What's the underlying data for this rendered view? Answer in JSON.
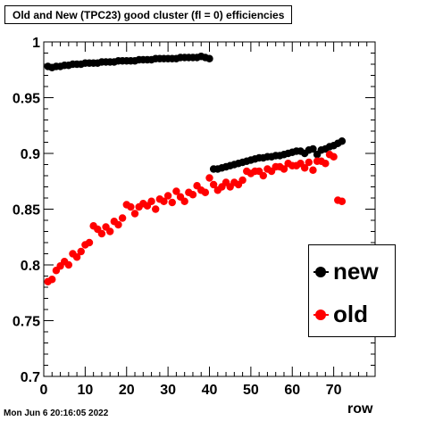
{
  "title": "Old and New (TPC23) good cluster (fl = 0) efficiencies",
  "timestamp": "Mon Jun  6 20:16:05 2022",
  "colors": {
    "new": "#000000",
    "old": "#ff0000",
    "frame": "#000000"
  },
  "chart_data": {
    "type": "scatter",
    "xlabel": "row",
    "ylabel": "",
    "xlim": [
      0,
      80
    ],
    "ylim": [
      0.7,
      1.0
    ],
    "x_ticks": [
      0,
      10,
      20,
      30,
      40,
      50,
      60,
      70
    ],
    "y_ticks": [
      0.7,
      0.75,
      0.8,
      0.85,
      0.9,
      0.95,
      1
    ],
    "y_tick_labels": [
      "0.7",
      "0.75",
      "0.8",
      "0.85",
      "0.9",
      "0.95",
      "1"
    ],
    "legend_position": "bottom-right",
    "series": [
      {
        "name": "new",
        "x": [
          1,
          2,
          3,
          4,
          5,
          6,
          7,
          8,
          9,
          10,
          11,
          12,
          13,
          14,
          15,
          16,
          17,
          18,
          19,
          20,
          21,
          22,
          23,
          24,
          25,
          26,
          27,
          28,
          29,
          30,
          31,
          32,
          33,
          34,
          35,
          36,
          37,
          38,
          39,
          40,
          41,
          42,
          43,
          44,
          45,
          46,
          47,
          48,
          49,
          50,
          51,
          52,
          53,
          54,
          55,
          56,
          57,
          58,
          59,
          60,
          61,
          62,
          63,
          64,
          65,
          66,
          67,
          68,
          69,
          70,
          71,
          72
        ],
        "y": [
          0.978,
          0.977,
          0.978,
          0.978,
          0.979,
          0.979,
          0.98,
          0.98,
          0.98,
          0.981,
          0.981,
          0.981,
          0.981,
          0.982,
          0.982,
          0.982,
          0.982,
          0.983,
          0.983,
          0.983,
          0.983,
          0.983,
          0.984,
          0.984,
          0.984,
          0.984,
          0.985,
          0.985,
          0.985,
          0.985,
          0.985,
          0.985,
          0.986,
          0.986,
          0.986,
          0.986,
          0.986,
          0.987,
          0.986,
          0.985,
          0.886,
          0.886,
          0.887,
          0.888,
          0.889,
          0.89,
          0.891,
          0.892,
          0.893,
          0.894,
          0.895,
          0.896,
          0.896,
          0.897,
          0.897,
          0.898,
          0.898,
          0.899,
          0.9,
          0.901,
          0.902,
          0.902,
          0.9,
          0.903,
          0.904,
          0.899,
          0.903,
          0.904,
          0.906,
          0.907,
          0.909,
          0.911
        ]
      },
      {
        "name": "old",
        "x": [
          1,
          2,
          3,
          4,
          5,
          6,
          7,
          8,
          9,
          10,
          11,
          12,
          13,
          14,
          15,
          16,
          17,
          18,
          19,
          20,
          21,
          22,
          23,
          24,
          25,
          26,
          27,
          28,
          29,
          30,
          31,
          32,
          33,
          34,
          35,
          36,
          37,
          38,
          39,
          40,
          41,
          42,
          43,
          44,
          45,
          46,
          47,
          48,
          49,
          50,
          51,
          52,
          53,
          54,
          55,
          56,
          57,
          58,
          59,
          60,
          61,
          62,
          63,
          64,
          65,
          66,
          67,
          68,
          69,
          70,
          71,
          72
        ],
        "y": [
          0.785,
          0.787,
          0.795,
          0.799,
          0.803,
          0.8,
          0.81,
          0.807,
          0.812,
          0.818,
          0.82,
          0.835,
          0.832,
          0.828,
          0.834,
          0.83,
          0.839,
          0.836,
          0.842,
          0.854,
          0.852,
          0.846,
          0.852,
          0.855,
          0.853,
          0.857,
          0.85,
          0.859,
          0.857,
          0.862,
          0.856,
          0.866,
          0.861,
          0.857,
          0.865,
          0.863,
          0.871,
          0.867,
          0.865,
          0.878,
          0.872,
          0.867,
          0.87,
          0.874,
          0.87,
          0.874,
          0.872,
          0.876,
          0.884,
          0.882,
          0.884,
          0.884,
          0.88,
          0.886,
          0.884,
          0.888,
          0.888,
          0.886,
          0.891,
          0.889,
          0.889,
          0.891,
          0.887,
          0.892,
          0.885,
          0.893,
          0.893,
          0.891,
          0.899,
          0.897,
          0.858,
          0.857
        ]
      }
    ]
  }
}
